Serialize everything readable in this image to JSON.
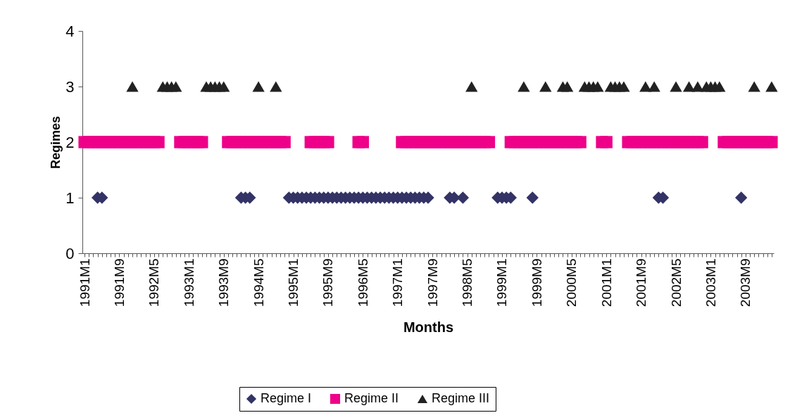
{
  "chart_data": {
    "type": "scatter",
    "xlabel": "Months",
    "ylabel": "Regimes",
    "ylim": [
      0,
      4
    ],
    "yticks": [
      0,
      1,
      2,
      3,
      4
    ],
    "grid": false,
    "legend": "bottom",
    "categories": [
      "1991M1",
      null,
      null,
      null,
      null,
      null,
      null,
      null,
      "1991M9",
      null,
      null,
      null,
      null,
      null,
      null,
      null,
      "1992M5",
      null,
      null,
      null,
      null,
      null,
      null,
      null,
      "1993M1",
      null,
      null,
      null,
      null,
      null,
      null,
      null,
      "1993M9",
      null,
      null,
      null,
      null,
      null,
      null,
      null,
      "1994M5",
      null,
      null,
      null,
      null,
      null,
      null,
      null,
      "1995M1",
      null,
      null,
      null,
      null,
      null,
      null,
      null,
      "1995M9",
      null,
      null,
      null,
      null,
      null,
      null,
      null,
      "1996M5",
      null,
      null,
      null,
      null,
      null,
      null,
      null,
      "1997M1",
      null,
      null,
      null,
      null,
      null,
      null,
      null,
      "1997M9",
      null,
      null,
      null,
      null,
      null,
      null,
      null,
      "1998M5",
      null,
      null,
      null,
      null,
      null,
      null,
      null,
      "1999M1",
      null,
      null,
      null,
      null,
      null,
      null,
      null,
      "1999M9",
      null,
      null,
      null,
      null,
      null,
      null,
      null,
      "2000M5",
      null,
      null,
      null,
      null,
      null,
      null,
      null,
      "2001M1",
      null,
      null,
      null,
      null,
      null,
      null,
      null,
      "2001M9",
      null,
      null,
      null,
      null,
      null,
      null,
      null,
      "2002M5",
      null,
      null,
      null,
      null,
      null,
      null,
      null,
      "2003M1",
      null,
      null,
      null,
      null,
      null,
      null,
      null,
      "2003M9",
      null,
      null,
      null,
      null,
      null,
      null
    ],
    "series": [
      {
        "name": "Regime I",
        "color": "#333366",
        "marker": "diamond",
        "values": [
          null,
          null,
          null,
          1,
          1,
          null,
          null,
          null,
          null,
          null,
          null,
          null,
          null,
          null,
          null,
          null,
          null,
          null,
          null,
          null,
          null,
          null,
          null,
          null,
          null,
          null,
          null,
          null,
          null,
          null,
          null,
          null,
          null,
          null,
          null,
          null,
          1,
          1,
          1,
          null,
          null,
          null,
          null,
          null,
          null,
          null,
          null,
          1,
          1,
          1,
          1,
          1,
          1,
          1,
          1,
          1,
          1,
          1,
          1,
          1,
          1,
          1,
          1,
          1,
          1,
          1,
          1,
          1,
          1,
          1,
          1,
          1,
          1,
          1,
          1,
          1,
          1,
          1,
          1,
          1,
          null,
          null,
          null,
          null,
          1,
          1,
          null,
          1,
          null,
          null,
          null,
          null,
          null,
          null,
          null,
          1,
          1,
          1,
          1,
          null,
          null,
          null,
          null,
          1,
          null,
          null,
          null,
          null,
          null,
          null,
          null,
          null,
          null,
          null,
          null,
          null,
          null,
          null,
          null,
          null,
          null,
          null,
          null,
          null,
          null,
          null,
          null,
          null,
          null,
          null,
          null,
          null,
          1,
          1,
          null,
          null,
          null,
          null,
          null,
          null,
          null,
          null,
          null,
          null,
          null,
          null,
          null,
          null,
          null,
          null,
          null,
          1,
          null,
          null,
          null,
          null,
          null,
          null,
          null
        ]
      },
      {
        "name": "Regime II",
        "color": "#ee0088",
        "marker": "square",
        "values": [
          2,
          2,
          2,
          2,
          2,
          2,
          2,
          2,
          2,
          2,
          2,
          2,
          2,
          2,
          2,
          2,
          2,
          2,
          null,
          null,
          null,
          null,
          2,
          2,
          2,
          2,
          2,
          2,
          null,
          null,
          null,
          null,
          null,
          2,
          2,
          2,
          2,
          2,
          2,
          2,
          2,
          2,
          2,
          2,
          2,
          2,
          2,
          null,
          null,
          null,
          null,
          null,
          2,
          2,
          2,
          2,
          2,
          null,
          null,
          null,
          null,
          null,
          null,
          2,
          2,
          null,
          null,
          null,
          null,
          null,
          null,
          null,
          null,
          2,
          2,
          2,
          2,
          2,
          2,
          2,
          2,
          2,
          2,
          2,
          2,
          2,
          2,
          2,
          2,
          2,
          2,
          2,
          2,
          2,
          null,
          null,
          null,
          null,
          2,
          2,
          2,
          2,
          2,
          2,
          2,
          2,
          2,
          2,
          2,
          2,
          2,
          2,
          2,
          2,
          2,
          null,
          null,
          null,
          null,
          2,
          2,
          null,
          null,
          null,
          null,
          2,
          2,
          2,
          2,
          2,
          2,
          2,
          2,
          2,
          2,
          2,
          2,
          2,
          2,
          2,
          2,
          2,
          2,
          null,
          null,
          null,
          null,
          2,
          2,
          2,
          2,
          2,
          2,
          2,
          2,
          2,
          2,
          2,
          2
        ]
      },
      {
        "name": "Regime III",
        "color": "#222222",
        "marker": "triangle",
        "values": [
          null,
          null,
          null,
          null,
          null,
          null,
          null,
          null,
          null,
          null,
          null,
          3,
          null,
          null,
          null,
          null,
          null,
          null,
          3,
          3,
          3,
          3,
          null,
          null,
          null,
          null,
          null,
          null,
          3,
          3,
          3,
          3,
          3,
          null,
          null,
          null,
          null,
          null,
          null,
          null,
          3,
          null,
          null,
          null,
          3,
          null,
          null,
          null,
          null,
          null,
          null,
          null,
          null,
          null,
          null,
          null,
          null,
          null,
          null,
          null,
          null,
          null,
          null,
          null,
          null,
          null,
          null,
          null,
          null,
          null,
          null,
          null,
          null,
          null,
          null,
          null,
          null,
          null,
          null,
          null,
          null,
          null,
          null,
          null,
          null,
          null,
          null,
          null,
          null,
          3,
          null,
          null,
          null,
          null,
          null,
          null,
          null,
          null,
          null,
          null,
          null,
          3,
          null,
          null,
          null,
          null,
          3,
          null,
          null,
          null,
          3,
          3,
          null,
          null,
          null,
          3,
          3,
          3,
          3,
          null,
          null,
          3,
          3,
          3,
          3,
          null,
          null,
          null,
          null,
          3,
          null,
          3,
          null,
          null,
          null,
          null,
          3,
          null,
          null,
          3,
          null,
          3,
          null,
          3,
          3,
          3,
          3,
          null,
          null,
          null,
          null,
          null,
          null,
          null,
          3,
          null,
          null,
          null,
          3
        ]
      }
    ]
  }
}
